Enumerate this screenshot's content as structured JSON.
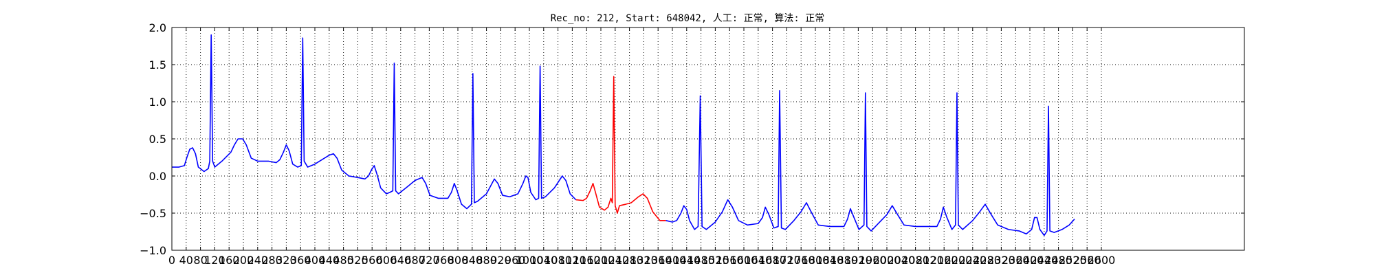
{
  "chart_data": {
    "type": "line",
    "title": "Rec_no: 212, Start: 648042, 人工: 正常, 算法: 正常",
    "xlabel": "",
    "ylabel": "",
    "xlim": [
      0,
      3000
    ],
    "ylim": [
      -1.0,
      2.0
    ],
    "grid": true,
    "x_ticks": [
      0,
      40,
      80,
      120,
      160,
      200,
      240,
      280,
      320,
      360,
      400,
      440,
      480,
      520,
      560,
      600,
      640,
      680,
      720,
      760,
      800,
      840,
      880,
      920,
      960,
      1000,
      1040,
      1080,
      1120,
      1160,
      1200,
      1240,
      1280,
      1320,
      1360,
      1400,
      1440,
      1480,
      1520,
      1560,
      1600,
      1640,
      1680,
      1720,
      1760,
      1800,
      1840,
      1880,
      1920,
      1960,
      2000,
      2040,
      2080,
      2120,
      2160,
      2200,
      2240,
      2280,
      2320,
      2360,
      2400,
      2440,
      2480,
      2520,
      2560,
      2600
    ],
    "y_ticks": [
      -1.0,
      -0.5,
      0.0,
      0.5,
      1.0,
      1.5,
      2.0
    ],
    "y_tick_labels": [
      "−1.0",
      "−0.5",
      "0.0",
      "0.5",
      "1.0",
      "1.5",
      "2.0"
    ],
    "series": [
      {
        "color": "#0000ff",
        "points": [
          [
            0,
            0.12
          ],
          [
            20,
            0.12
          ],
          [
            35,
            0.14
          ],
          [
            42,
            0.25
          ],
          [
            50,
            0.36
          ],
          [
            58,
            0.38
          ],
          [
            66,
            0.3
          ],
          [
            74,
            0.12
          ],
          [
            90,
            0.06
          ],
          [
            102,
            0.1
          ],
          [
            106,
            0.2
          ],
          [
            110,
            1.9
          ],
          [
            114,
            0.2
          ],
          [
            120,
            0.12
          ],
          [
            140,
            0.2
          ],
          [
            165,
            0.32
          ],
          [
            175,
            0.42
          ],
          [
            185,
            0.5
          ],
          [
            198,
            0.5
          ],
          [
            208,
            0.42
          ],
          [
            222,
            0.24
          ],
          [
            240,
            0.2
          ],
          [
            270,
            0.2
          ],
          [
            292,
            0.18
          ],
          [
            302,
            0.22
          ],
          [
            312,
            0.32
          ],
          [
            320,
            0.42
          ],
          [
            328,
            0.34
          ],
          [
            338,
            0.16
          ],
          [
            352,
            0.12
          ],
          [
            362,
            0.14
          ],
          [
            366,
            1.86
          ],
          [
            370,
            0.2
          ],
          [
            380,
            0.12
          ],
          [
            400,
            0.16
          ],
          [
            420,
            0.22
          ],
          [
            440,
            0.28
          ],
          [
            452,
            0.3
          ],
          [
            462,
            0.24
          ],
          [
            475,
            0.08
          ],
          [
            495,
            0.0
          ],
          [
            520,
            -0.02
          ],
          [
            540,
            -0.04
          ],
          [
            550,
            0.0
          ],
          [
            558,
            0.08
          ],
          [
            566,
            0.14
          ],
          [
            574,
            0.02
          ],
          [
            584,
            -0.16
          ],
          [
            600,
            -0.24
          ],
          [
            610,
            -0.22
          ],
          [
            618,
            -0.2
          ],
          [
            622,
            1.52
          ],
          [
            626,
            -0.2
          ],
          [
            634,
            -0.24
          ],
          [
            660,
            -0.14
          ],
          [
            680,
            -0.06
          ],
          [
            700,
            -0.02
          ],
          [
            710,
            -0.1
          ],
          [
            722,
            -0.26
          ],
          [
            745,
            -0.3
          ],
          [
            772,
            -0.3
          ],
          [
            782,
            -0.22
          ],
          [
            790,
            -0.1
          ],
          [
            798,
            -0.2
          ],
          [
            810,
            -0.38
          ],
          [
            825,
            -0.44
          ],
          [
            838,
            -0.38
          ],
          [
            842,
            1.38
          ],
          [
            846,
            -0.36
          ],
          [
            855,
            -0.34
          ],
          [
            880,
            -0.24
          ],
          [
            902,
            -0.04
          ],
          [
            912,
            -0.1
          ],
          [
            925,
            -0.26
          ],
          [
            945,
            -0.28
          ],
          [
            968,
            -0.24
          ],
          [
            982,
            -0.1
          ],
          [
            990,
            0.0
          ],
          [
            996,
            -0.02
          ],
          [
            1004,
            -0.22
          ],
          [
            1018,
            -0.32
          ],
          [
            1026,
            -0.3
          ],
          [
            1030,
            1.48
          ],
          [
            1034,
            -0.3
          ],
          [
            1045,
            -0.28
          ],
          [
            1070,
            -0.16
          ],
          [
            1092,
            0.0
          ],
          [
            1102,
            -0.06
          ],
          [
            1114,
            -0.24
          ],
          [
            1130,
            -0.32
          ]
        ]
      },
      {
        "color": "#ff0000",
        "points": [
          [
            1130,
            -0.32
          ],
          [
            1150,
            -0.33
          ],
          [
            1160,
            -0.3
          ],
          [
            1170,
            -0.2
          ],
          [
            1178,
            -0.1
          ],
          [
            1186,
            -0.24
          ],
          [
            1196,
            -0.42
          ],
          [
            1210,
            -0.46
          ],
          [
            1220,
            -0.42
          ],
          [
            1228,
            -0.3
          ],
          [
            1232,
            -0.36
          ],
          [
            1236,
            1.34
          ],
          [
            1240,
            -0.4
          ],
          [
            1246,
            -0.5
          ],
          [
            1252,
            -0.4
          ],
          [
            1270,
            -0.38
          ],
          [
            1285,
            -0.36
          ],
          [
            1305,
            -0.28
          ],
          [
            1318,
            -0.24
          ],
          [
            1330,
            -0.3
          ],
          [
            1345,
            -0.48
          ],
          [
            1365,
            -0.6
          ],
          [
            1382,
            -0.6
          ]
        ]
      },
      {
        "color": "#0000ff",
        "points": [
          [
            1382,
            -0.6
          ],
          [
            1400,
            -0.62
          ],
          [
            1412,
            -0.6
          ],
          [
            1424,
            -0.5
          ],
          [
            1432,
            -0.4
          ],
          [
            1440,
            -0.45
          ],
          [
            1448,
            -0.6
          ],
          [
            1462,
            -0.72
          ],
          [
            1472,
            -0.68
          ],
          [
            1478,
            1.08
          ],
          [
            1483,
            -0.68
          ],
          [
            1495,
            -0.72
          ],
          [
            1520,
            -0.62
          ],
          [
            1540,
            -0.48
          ],
          [
            1555,
            -0.32
          ],
          [
            1568,
            -0.42
          ],
          [
            1585,
            -0.6
          ],
          [
            1610,
            -0.66
          ],
          [
            1640,
            -0.64
          ],
          [
            1652,
            -0.56
          ],
          [
            1660,
            -0.42
          ],
          [
            1670,
            -0.52
          ],
          [
            1684,
            -0.7
          ],
          [
            1696,
            -0.68
          ],
          [
            1700,
            1.15
          ],
          [
            1705,
            -0.7
          ],
          [
            1716,
            -0.72
          ],
          [
            1740,
            -0.6
          ],
          [
            1760,
            -0.48
          ],
          [
            1775,
            -0.36
          ],
          [
            1790,
            -0.5
          ],
          [
            1808,
            -0.66
          ],
          [
            1840,
            -0.68
          ],
          [
            1880,
            -0.68
          ],
          [
            1890,
            -0.58
          ],
          [
            1898,
            -0.44
          ],
          [
            1908,
            -0.56
          ],
          [
            1922,
            -0.72
          ],
          [
            1936,
            -0.66
          ],
          [
            1940,
            1.12
          ],
          [
            1944,
            -0.68
          ],
          [
            1956,
            -0.74
          ],
          [
            1980,
            -0.62
          ],
          [
            2000,
            -0.52
          ],
          [
            2015,
            -0.4
          ],
          [
            2030,
            -0.52
          ],
          [
            2048,
            -0.66
          ],
          [
            2080,
            -0.68
          ],
          [
            2140,
            -0.68
          ],
          [
            2150,
            -0.58
          ],
          [
            2158,
            -0.42
          ],
          [
            2168,
            -0.56
          ],
          [
            2182,
            -0.72
          ],
          [
            2192,
            -0.66
          ],
          [
            2196,
            1.12
          ],
          [
            2200,
            -0.66
          ],
          [
            2212,
            -0.72
          ],
          [
            2240,
            -0.6
          ],
          [
            2260,
            -0.48
          ],
          [
            2275,
            -0.38
          ],
          [
            2292,
            -0.52
          ],
          [
            2310,
            -0.66
          ],
          [
            2340,
            -0.72
          ],
          [
            2370,
            -0.74
          ],
          [
            2390,
            -0.78
          ],
          [
            2405,
            -0.72
          ],
          [
            2413,
            -0.56
          ],
          [
            2420,
            -0.56
          ],
          [
            2428,
            -0.72
          ],
          [
            2440,
            -0.8
          ],
          [
            2448,
            -0.74
          ],
          [
            2452,
            0.94
          ],
          [
            2456,
            -0.74
          ],
          [
            2468,
            -0.76
          ],
          [
            2490,
            -0.72
          ],
          [
            2510,
            -0.66
          ],
          [
            2525,
            -0.58
          ]
        ]
      }
    ]
  }
}
